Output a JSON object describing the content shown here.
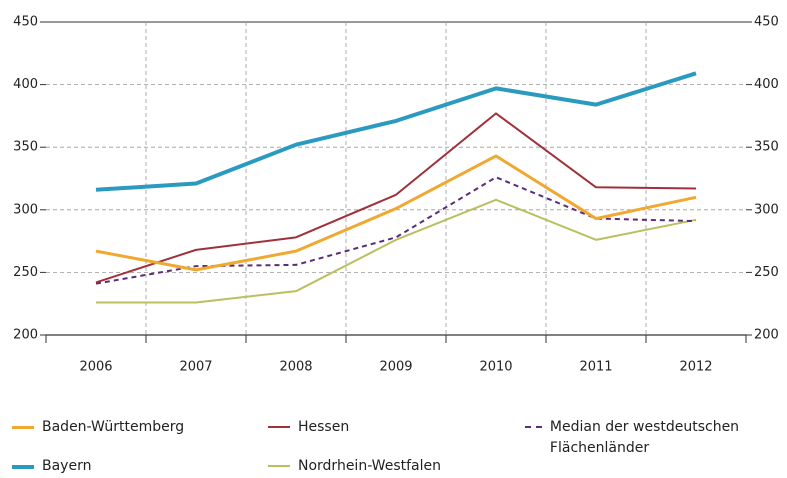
{
  "chart_data": {
    "type": "line",
    "categories": [
      "2006",
      "2007",
      "2008",
      "2009",
      "2010",
      "2011",
      "2012"
    ],
    "series": [
      {
        "name": "Baden-Württemberg",
        "color": "#f0a830",
        "values": [
          267,
          252,
          267,
          301,
          343,
          293,
          310
        ]
      },
      {
        "name": "Hessen",
        "color": "#a0303a",
        "values": [
          242,
          268,
          278,
          312,
          377,
          318,
          317
        ]
      },
      {
        "name": "Median der westdeutschen Flächenländer",
        "color": "#5a2c7a",
        "dashed": true,
        "values": [
          241,
          255,
          256,
          278,
          326,
          293,
          291
        ]
      },
      {
        "name": "Bayern",
        "color": "#2a9ac0",
        "values": [
          316,
          321,
          352,
          371,
          397,
          384,
          409
        ]
      },
      {
        "name": "Nordrhein-Westfalen",
        "color": "#b8c060",
        "values": [
          226,
          226,
          235,
          276,
          308,
          276,
          292
        ]
      }
    ],
    "ylim": [
      200,
      450
    ],
    "yticks": [
      200,
      250,
      300,
      350,
      400,
      450
    ],
    "y2lim": [
      200,
      450
    ],
    "y2ticks": [
      200,
      250,
      300,
      350,
      400,
      450
    ],
    "grid": true
  }
}
